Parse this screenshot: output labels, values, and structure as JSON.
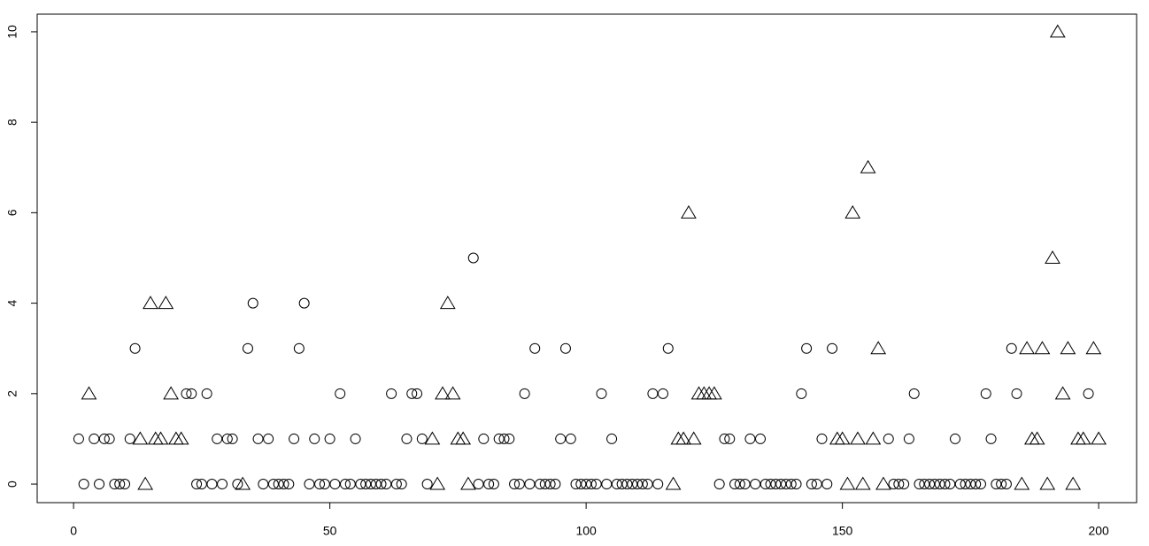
{
  "chart_data": {
    "type": "scatter",
    "xlim": [
      -7.1,
      207.4
    ],
    "ylim": [
      -0.41,
      10.39
    ],
    "xticks": [
      0,
      50,
      100,
      150,
      200
    ],
    "yticks": [
      0,
      2,
      4,
      6,
      8,
      10
    ],
    "grid": false,
    "series": [
      {
        "marker": "circle",
        "color": "#000000",
        "x": [
          1,
          2,
          4,
          5,
          6,
          7,
          8,
          9,
          10,
          11,
          12,
          22,
          23,
          24,
          25,
          26,
          27,
          28,
          29,
          30,
          31,
          32,
          34,
          35,
          36,
          37,
          38,
          39,
          40,
          41,
          42,
          43,
          44,
          45,
          46,
          47,
          48,
          49,
          50,
          51,
          52,
          53,
          54,
          55,
          56,
          57,
          58,
          59,
          60,
          61,
          62,
          63,
          64,
          65,
          66,
          67,
          68,
          69,
          78,
          79,
          80,
          81,
          82,
          83,
          84,
          85,
          86,
          87,
          88,
          89,
          90,
          91,
          92,
          93,
          94,
          95,
          96,
          97,
          98,
          99,
          100,
          101,
          102,
          103,
          104,
          105,
          106,
          107,
          108,
          109,
          110,
          111,
          112,
          113,
          114,
          115,
          116,
          126,
          127,
          128,
          129,
          130,
          131,
          132,
          133,
          134,
          135,
          136,
          137,
          138,
          139,
          140,
          141,
          142,
          143,
          144,
          145,
          146,
          147,
          148,
          159,
          160,
          161,
          162,
          163,
          164,
          165,
          166,
          167,
          168,
          169,
          170,
          171,
          172,
          173,
          174,
          175,
          176,
          177,
          178,
          179,
          180,
          181,
          182,
          183,
          184,
          198
        ],
        "values": [
          1,
          0,
          1,
          0,
          1,
          1,
          0,
          0,
          0,
          1,
          3,
          2,
          2,
          0,
          0,
          2,
          0,
          1,
          0,
          1,
          1,
          0,
          3,
          4,
          1,
          0,
          1,
          0,
          0,
          0,
          0,
          1,
          3,
          4,
          0,
          1,
          0,
          0,
          1,
          0,
          2,
          0,
          0,
          1,
          0,
          0,
          0,
          0,
          0,
          0,
          2,
          0,
          0,
          1,
          2,
          2,
          1,
          0,
          5,
          0,
          1,
          0,
          0,
          1,
          1,
          1,
          0,
          0,
          2,
          0,
          3,
          0,
          0,
          0,
          0,
          1,
          3,
          1,
          0,
          0,
          0,
          0,
          0,
          2,
          0,
          1,
          0,
          0,
          0,
          0,
          0,
          0,
          0,
          2,
          0,
          2,
          3,
          0,
          1,
          1,
          0,
          0,
          0,
          1,
          0,
          1,
          0,
          0,
          0,
          0,
          0,
          0,
          0,
          2,
          3,
          0,
          0,
          1,
          0,
          3,
          1,
          0,
          0,
          0,
          1,
          2,
          0,
          0,
          0,
          0,
          0,
          0,
          0,
          1,
          0,
          0,
          0,
          0,
          0,
          2,
          1,
          0,
          0,
          0,
          3,
          2,
          2
        ]
      },
      {
        "marker": "triangle",
        "color": "#000000",
        "x": [
          3,
          13,
          14,
          15,
          16,
          17,
          18,
          19,
          20,
          21,
          33,
          70,
          71,
          72,
          73,
          74,
          75,
          76,
          77,
          117,
          118,
          119,
          120,
          121,
          122,
          123,
          124,
          125,
          149,
          150,
          151,
          152,
          153,
          154,
          155,
          156,
          157,
          158,
          185,
          186,
          187,
          188,
          189,
          190,
          191,
          192,
          193,
          194,
          195,
          196,
          197,
          199,
          200
        ],
        "values": [
          2,
          1,
          0,
          4,
          1,
          1,
          4,
          2,
          1,
          1,
          0,
          1,
          0,
          2,
          4,
          2,
          1,
          1,
          0,
          0,
          1,
          1,
          6,
          1,
          2,
          2,
          2,
          2,
          1,
          1,
          0,
          6,
          1,
          0,
          7,
          1,
          3,
          0,
          0,
          3,
          1,
          1,
          3,
          0,
          5,
          10,
          2,
          3,
          0,
          1,
          1,
          3,
          1
        ]
      }
    ]
  }
}
